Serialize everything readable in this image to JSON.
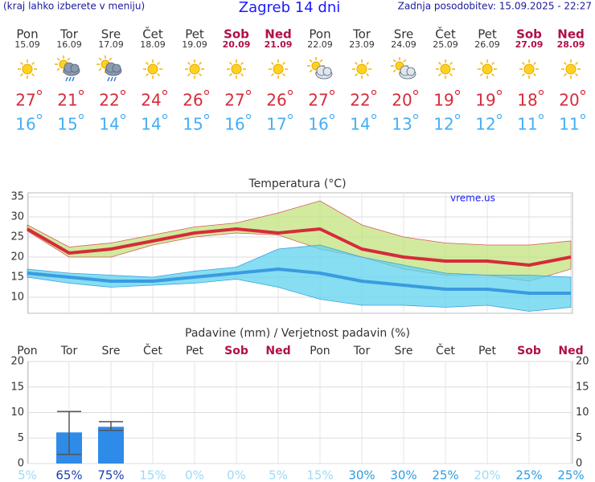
{
  "header": {
    "hint": "(kraj lahko izberete v meniju)",
    "title": "Zagreb 14 dni",
    "updated": "Zadnja posodobitev: 15.09.2025 - 22:27"
  },
  "days": {
    "names": [
      "Pon",
      "Tor",
      "Sre",
      "Čet",
      "Pet",
      "Sob",
      "Ned",
      "Pon",
      "Tor",
      "Sre",
      "Čet",
      "Pet",
      "Sob",
      "Ned"
    ],
    "dates": [
      "15.09",
      "16.09",
      "17.09",
      "18.09",
      "19.09",
      "20.09",
      "21.09",
      "22.09",
      "23.09",
      "24.09",
      "25.09",
      "26.09",
      "27.09",
      "28.09"
    ],
    "weekend": [
      false,
      false,
      false,
      false,
      false,
      true,
      true,
      false,
      false,
      false,
      false,
      false,
      true,
      true
    ],
    "weekend_color": "#b0104a"
  },
  "chart_data": [
    {
      "type": "line",
      "title": "Temperatura (°C)",
      "annotation": "vreme.us",
      "ylim": [
        6,
        36
      ],
      "yticks": [
        10,
        15,
        20,
        25,
        30,
        35
      ],
      "grid": true,
      "series": [
        {
          "color": "#d62b3b",
          "values": [
            27,
            21,
            22,
            24,
            26,
            27,
            26,
            27,
            22,
            20,
            19,
            19,
            18,
            20
          ]
        },
        {
          "color": "#3a9be0",
          "values": [
            16,
            15,
            14,
            14,
            15,
            16,
            17,
            16,
            14,
            13,
            12,
            12,
            11,
            11
          ]
        }
      ],
      "bands": [
        {
          "color": "#c3e37d",
          "high": [
            28,
            22.5,
            23.5,
            25.5,
            27.5,
            28.5,
            31,
            34,
            28,
            25,
            23.5,
            23,
            23,
            24
          ],
          "low": [
            26.5,
            20,
            20,
            23,
            25,
            26,
            25.5,
            22,
            20,
            17,
            15.5,
            15.5,
            14,
            17
          ]
        },
        {
          "color": "#5fd3ee",
          "high": [
            17,
            16,
            15.5,
            15,
            16.5,
            17.5,
            22,
            23,
            20,
            18,
            16,
            15.5,
            15.5,
            15
          ],
          "low": [
            15,
            13.5,
            12.5,
            13,
            13.5,
            14.5,
            12.5,
            9.5,
            8,
            8,
            7.5,
            8,
            6.5,
            7.5
          ]
        }
      ]
    },
    {
      "type": "bar",
      "title": "Padavine (mm) / Verjetnost padavin (%)",
      "color": "#2f8be8",
      "ylim": [
        0,
        20
      ],
      "yticks": [
        0,
        5,
        10,
        15,
        20
      ],
      "grid": true,
      "values": [
        0,
        6.1,
        7.2,
        0,
        0,
        0,
        0,
        0,
        0,
        0,
        0,
        0,
        0,
        0
      ],
      "error_low": [
        null,
        1.8,
        6.5,
        null,
        null,
        null,
        null,
        null,
        null,
        null,
        null,
        null,
        null,
        null
      ],
      "error_high": [
        null,
        10.2,
        8.2,
        null,
        null,
        null,
        null,
        null,
        null,
        null,
        null,
        null,
        null,
        null
      ],
      "probability": [
        5,
        65,
        75,
        15,
        0,
        0,
        5,
        15,
        30,
        30,
        25,
        20,
        25,
        25
      ],
      "probability_labels": [
        "5%",
        "65%",
        "75%",
        "15%",
        "0%",
        "0%",
        "5%",
        "15%",
        "30%",
        "30%",
        "25%",
        "20%",
        "25%",
        "25%"
      ]
    }
  ]
}
